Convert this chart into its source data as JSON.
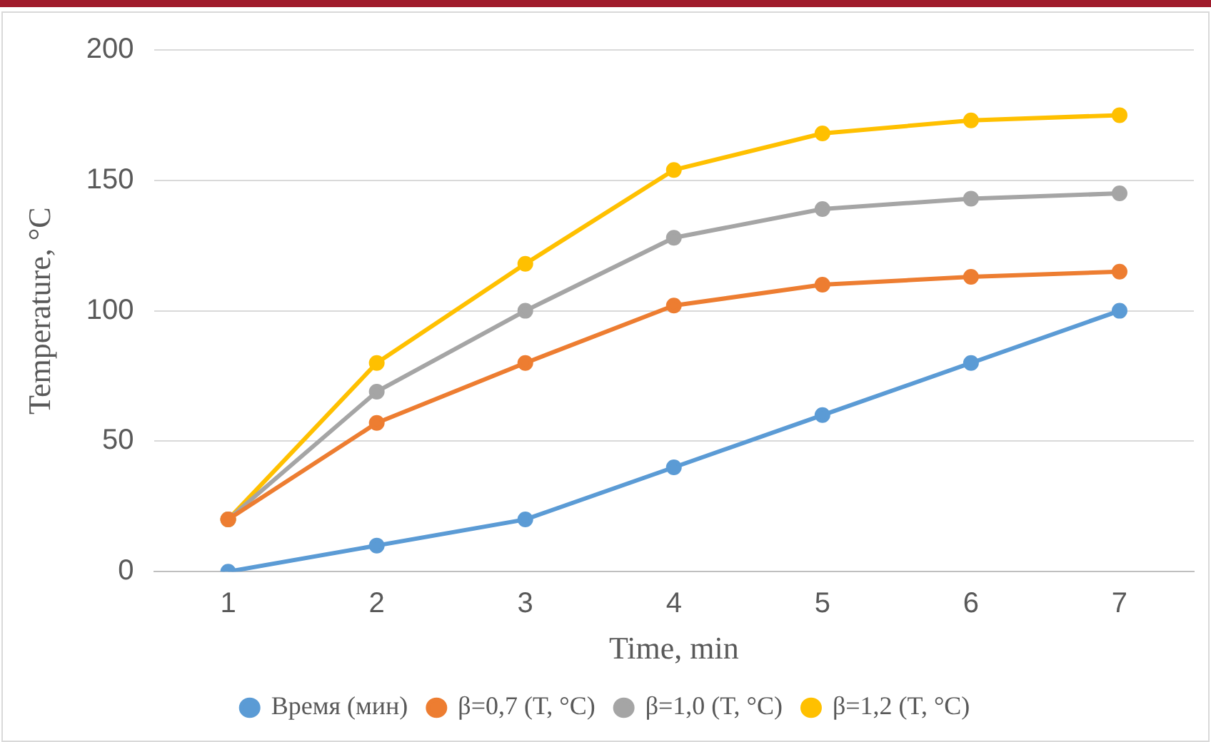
{
  "chart_data": {
    "type": "line",
    "xlabel": "Time, min",
    "ylabel": "Temperature, °C",
    "categories": [
      "1",
      "2",
      "3",
      "4",
      "5",
      "6",
      "7"
    ],
    "series": [
      {
        "name": "Время (мин)",
        "color": "#5b9bd5",
        "values": [
          0,
          10,
          20,
          40,
          60,
          80,
          100
        ]
      },
      {
        "name": "β=0,7 (T, °C)",
        "color": "#ed7d31",
        "values": [
          20,
          57,
          80,
          102,
          110,
          113,
          115
        ]
      },
      {
        "name": "β=1,0 (T, °C)",
        "color": "#a5a5a5",
        "values": [
          20,
          69,
          100,
          128,
          139,
          143,
          145
        ]
      },
      {
        "name": "β=1,2 (T, °C)",
        "color": "#ffc000",
        "values": [
          20,
          80,
          118,
          154,
          168,
          173,
          175
        ]
      }
    ],
    "ylim": [
      0,
      200
    ],
    "yticks": [
      0,
      50,
      100,
      150,
      200
    ],
    "grid": "y",
    "legend": "bottom",
    "marker": "circle",
    "line_style": "solid"
  }
}
